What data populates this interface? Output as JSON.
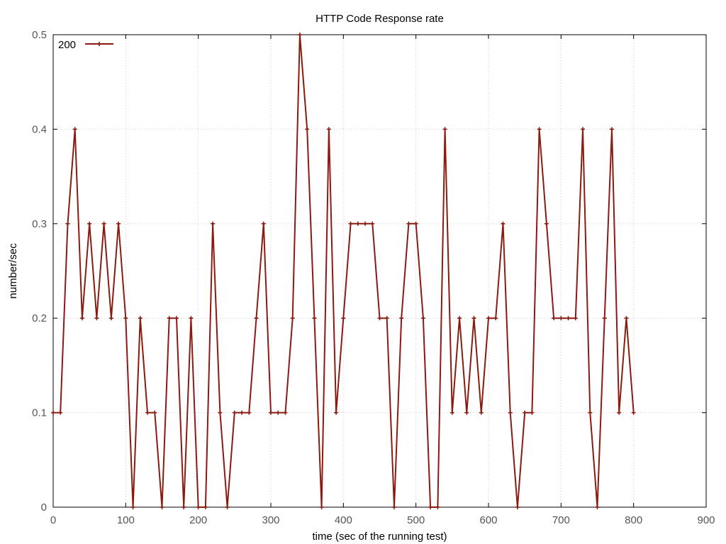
{
  "chart_data": {
    "type": "line",
    "title": "HTTP Code Response rate",
    "xlabel": "time (sec of the running test)",
    "ylabel": "number/sec",
    "xlim": [
      0,
      900
    ],
    "ylim": [
      0,
      0.5
    ],
    "xticks": [
      0,
      100,
      200,
      300,
      400,
      500,
      600,
      700,
      800,
      900
    ],
    "yticks": [
      0,
      0.1,
      0.2,
      0.3,
      0.4,
      0.5
    ],
    "xtick_labels": [
      "0",
      "100",
      "200",
      "300",
      "400",
      "500",
      "600",
      "700",
      "800",
      "900"
    ],
    "ytick_labels": [
      "0",
      "0.1",
      "0.2",
      "0.3",
      "0.4",
      "0.5"
    ],
    "grid": true,
    "legend_position": "top-left",
    "series": [
      {
        "name": "200",
        "color": "#8b1a10",
        "marker": "plus",
        "x": [
          0,
          10,
          20,
          30,
          40,
          50,
          60,
          70,
          80,
          90,
          100,
          110,
          120,
          130,
          140,
          150,
          160,
          170,
          180,
          190,
          200,
          210,
          220,
          230,
          240,
          250,
          260,
          270,
          280,
          290,
          300,
          310,
          320,
          330,
          340,
          350,
          360,
          370,
          380,
          390,
          400,
          410,
          420,
          430,
          440,
          450,
          460,
          470,
          480,
          490,
          500,
          510,
          520,
          530,
          540,
          550,
          560,
          570,
          580,
          590,
          600,
          610,
          620,
          630,
          640,
          650,
          660,
          670,
          680,
          690,
          700,
          710,
          720,
          730,
          740,
          750,
          760,
          770,
          780,
          790,
          800
        ],
        "y": [
          0.1,
          0.1,
          0.3,
          0.4,
          0.2,
          0.3,
          0.2,
          0.3,
          0.2,
          0.3,
          0.2,
          0,
          0.2,
          0.1,
          0.1,
          0,
          0.2,
          0.2,
          0,
          0.2,
          0,
          0,
          0.3,
          0.1,
          0,
          0.1,
          0.1,
          0.1,
          0.2,
          0.3,
          0.1,
          0.1,
          0.1,
          0.2,
          0.5,
          0.4,
          0.2,
          0,
          0.4,
          0.1,
          0.2,
          0.3,
          0.3,
          0.3,
          0.3,
          0.2,
          0.2,
          0,
          0.2,
          0.3,
          0.3,
          0.2,
          0,
          0,
          0.4,
          0.1,
          0.2,
          0.1,
          0.2,
          0.1,
          0.2,
          0.2,
          0.3,
          0.1,
          0,
          0.1,
          0.1,
          0.4,
          0.3,
          0.2,
          0.2,
          0.2,
          0.2,
          0.4,
          0.1,
          0,
          0.2,
          0.4,
          0.1,
          0.2,
          0.1
        ]
      }
    ]
  }
}
